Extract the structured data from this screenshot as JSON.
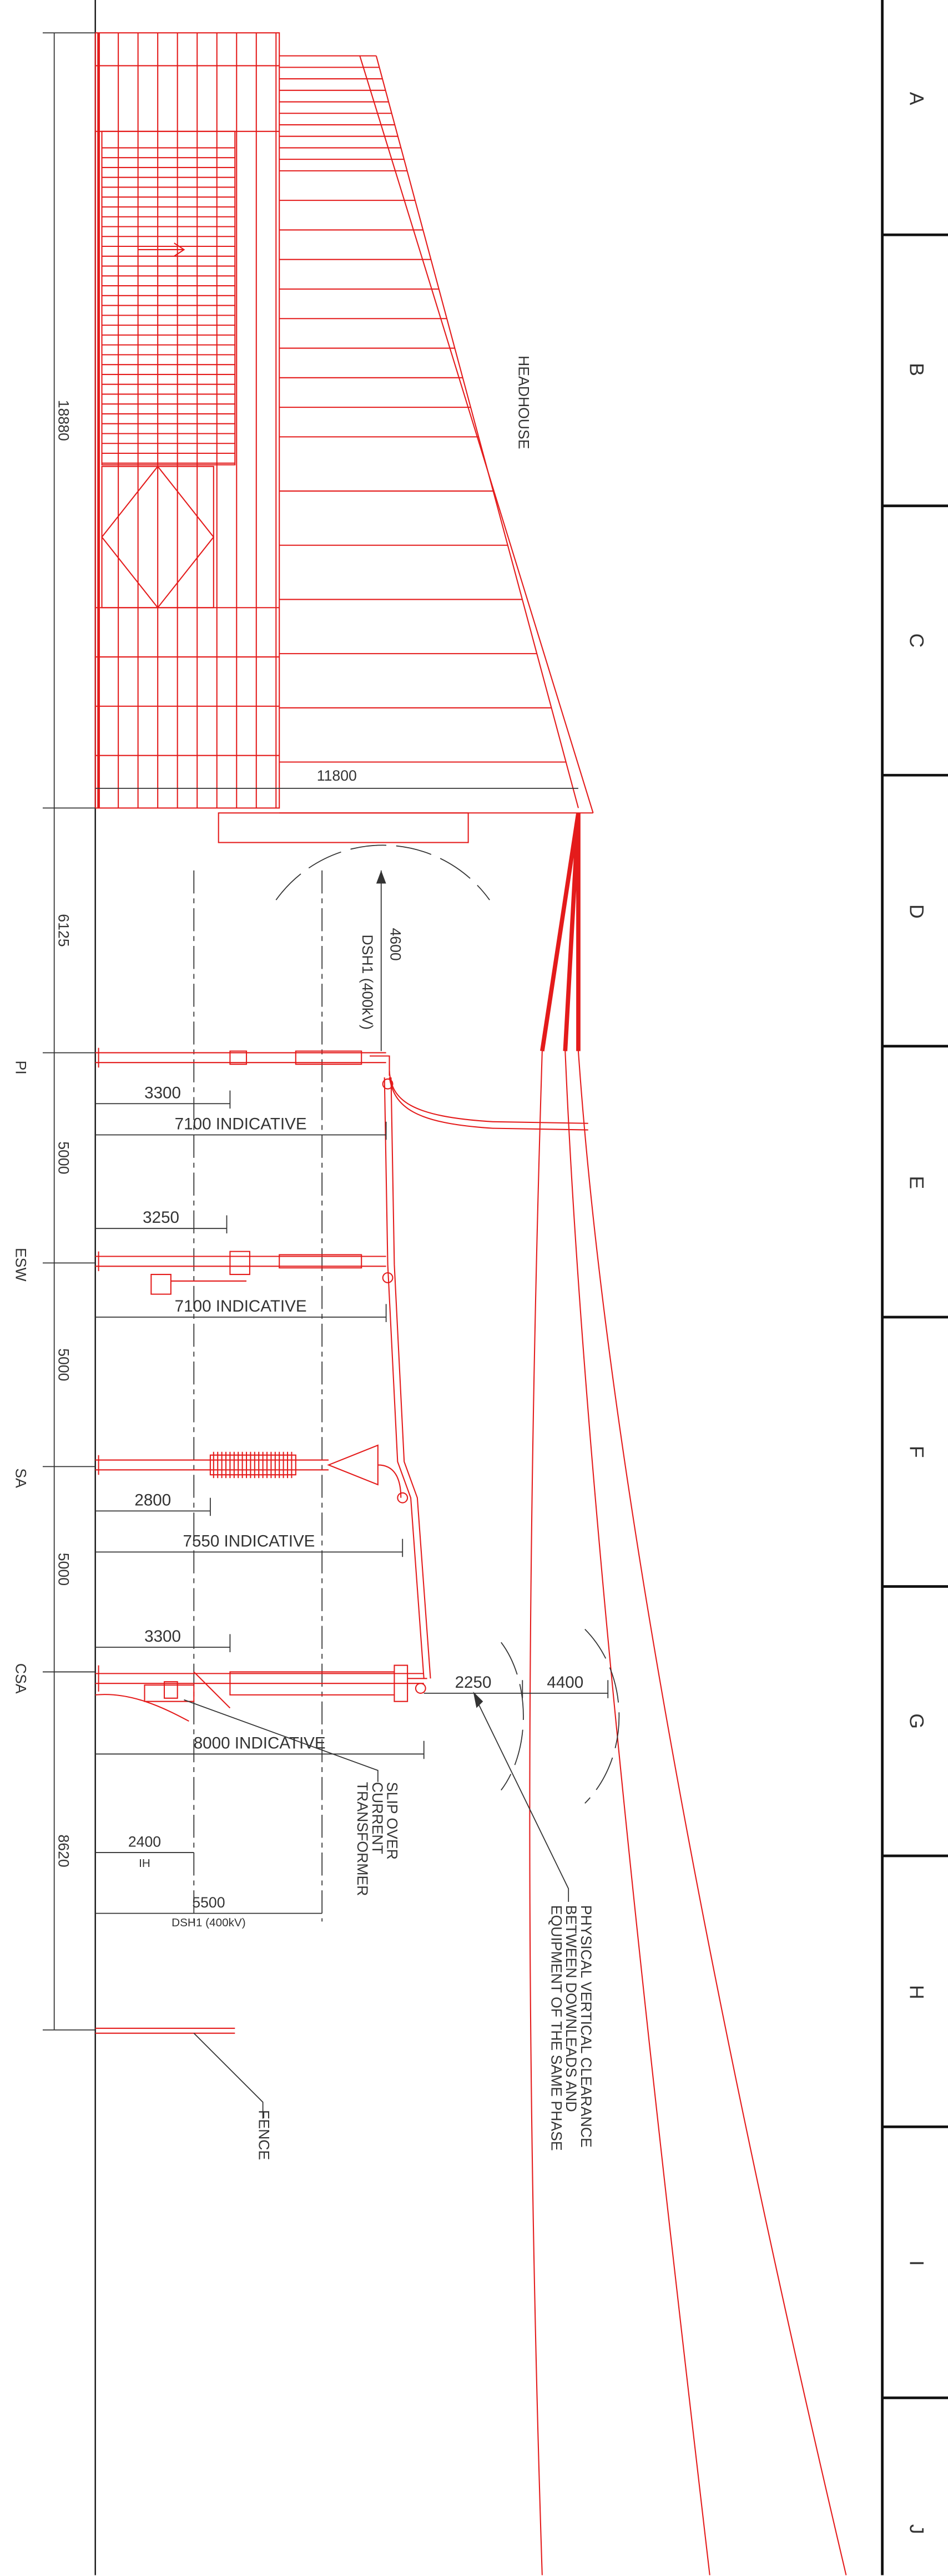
{
  "grid_labels": [
    "A",
    "B",
    "C",
    "D",
    "E",
    "F",
    "G",
    "H",
    "I",
    "J"
  ],
  "vertical_dimensions": [
    "18880",
    "6125",
    "5000",
    "5000",
    "5000",
    "8620"
  ],
  "equipment_labels": [
    "PI",
    "ESW",
    "SA",
    "CSA"
  ],
  "headhouse": {
    "label": "HEADHOUSE",
    "width": "11800"
  },
  "clearance_arc": {
    "value": "4600",
    "label": "DSH1 (400kV)"
  },
  "horizontal_dimensions": [
    "3300",
    "7100 INDICATIVE",
    "3250",
    "7100 INDICATIVE",
    "2800",
    "7550 INDICATIVE",
    "3300",
    "8000 INDICATIVE",
    "2250",
    "4400"
  ],
  "ih_dimension": {
    "value": "2400",
    "label": "IH"
  },
  "dsh_dimension": {
    "value": "5500",
    "label": "DSH1 (400kV)"
  },
  "notes": {
    "ct": [
      "SLIP OVER",
      "CURRENT",
      "TRANSFORMER"
    ],
    "clearance": [
      "PHYSICAL VERTICAL CLEARANCE",
      "BETWEEN DOWNLEADS AND",
      "EQUIPMENT OF THE SAME PHASE"
    ],
    "fence": "FENCE"
  }
}
